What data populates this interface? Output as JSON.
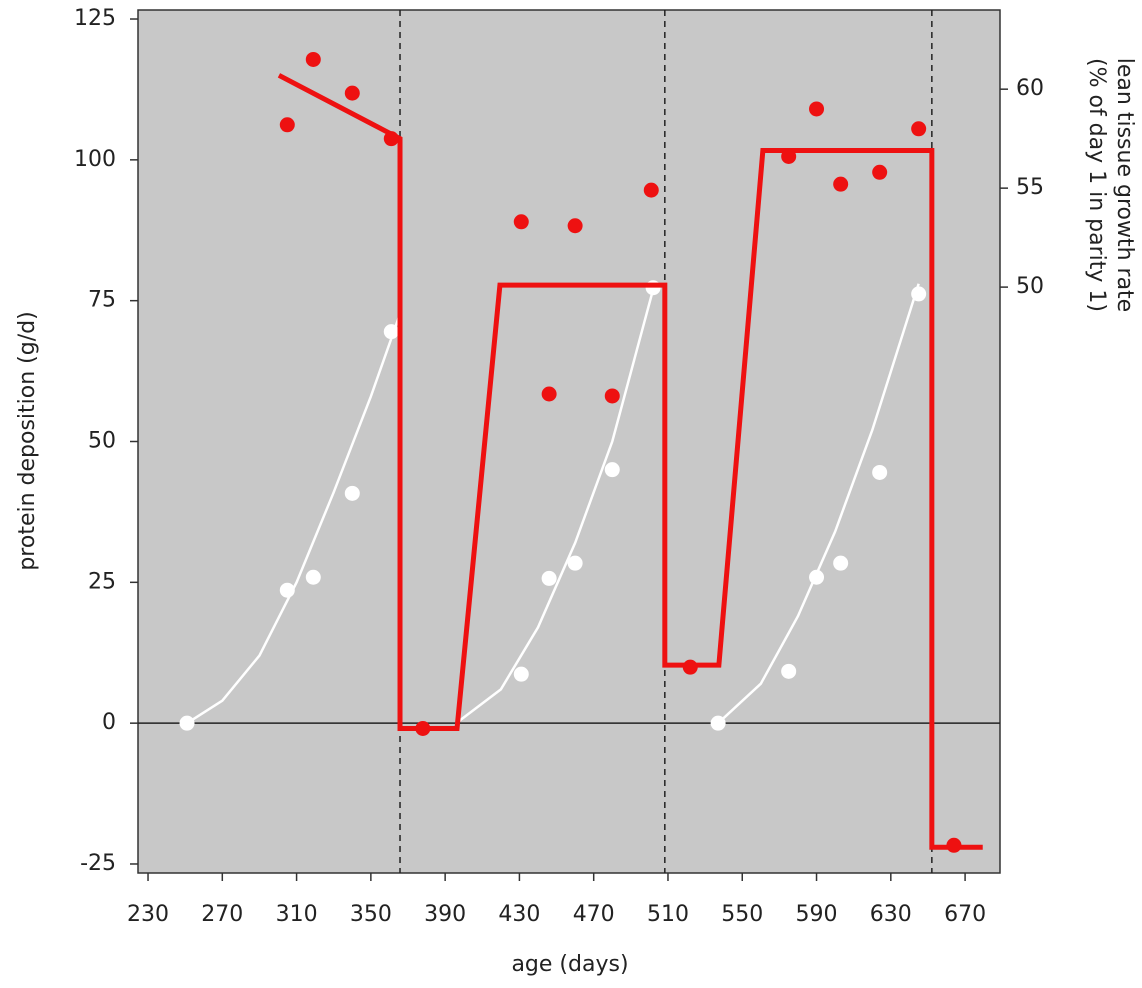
{
  "chart_data": {
    "type": "line",
    "xlabel": "age (days)",
    "ylabel": "protein deposition (g/d)",
    "y2label": [
      "lean tissue growth rate",
      "(% of day 1 in parity 1)"
    ],
    "xlim": [
      224.6,
      688.8
    ],
    "xticks": [
      230,
      270,
      310,
      350,
      390,
      430,
      470,
      510,
      550,
      590,
      630,
      670
    ],
    "ylim": [
      -26.6,
      126.6
    ],
    "yticks": [
      -25,
      0,
      25,
      50,
      75,
      100,
      125
    ],
    "y2lim": [
      20.4,
      64.0
    ],
    "y2ticks": [
      50,
      55,
      60
    ],
    "background": "#c8c8c8",
    "zero_line": 0,
    "vlines": [
      365.7,
      508.3,
      652.1
    ],
    "series": [
      {
        "type": "line",
        "color": "#ffffff",
        "axis": "y",
        "x": [
          251,
          270,
          290,
          310,
          330,
          350,
          365
        ],
        "values": [
          0,
          4,
          12,
          25,
          41,
          58,
          72
        ]
      },
      {
        "type": "line",
        "color": "#ffffff",
        "axis": "y",
        "x": [
          396,
          420,
          440,
          460,
          480,
          502
        ],
        "values": [
          0,
          6,
          17,
          32,
          50,
          77
        ]
      },
      {
        "type": "line",
        "color": "#ffffff",
        "axis": "y",
        "x": [
          537,
          560,
          580,
          600,
          620,
          645
        ],
        "values": [
          0,
          7,
          19,
          34,
          52,
          78
        ]
      },
      {
        "type": "scatter",
        "color": "#ffffff",
        "axis": "y",
        "x": [
          251,
          305,
          319,
          340,
          361,
          431,
          446,
          460,
          480,
          502,
          537,
          575,
          590,
          603,
          624,
          645
        ],
        "values": [
          0,
          23.6,
          25.9,
          40.8,
          69.5,
          8.7,
          25.7,
          28.4,
          45,
          77.3,
          0,
          9.2,
          25.9,
          28.4,
          44.5,
          76.2
        ]
      },
      {
        "type": "line",
        "color": "#ee1111",
        "axis": "y2",
        "x": [
          300.5,
          365.7,
          365.7,
          396.4,
          419.5,
          508.3,
          508.3,
          537.4,
          561.1,
          652.1,
          652.1,
          679.5
        ],
        "values": [
          60.7,
          57.5,
          27.7,
          27.7,
          50.1,
          50.1,
          30.9,
          30.9,
          56.9,
          56.9,
          21.7,
          21.7
        ]
      },
      {
        "type": "scatter",
        "color": "#ee1111",
        "axis": "y2",
        "x": [
          305,
          319,
          340,
          361,
          378,
          431,
          446,
          460,
          480,
          501,
          522,
          575,
          590,
          603,
          624,
          645,
          664
        ],
        "values": [
          58.2,
          61.5,
          59.8,
          57.5,
          27.7,
          53.3,
          44.6,
          53.1,
          44.5,
          54.9,
          30.8,
          56.6,
          59.0,
          55.2,
          55.8,
          58.0,
          21.8
        ]
      }
    ]
  }
}
